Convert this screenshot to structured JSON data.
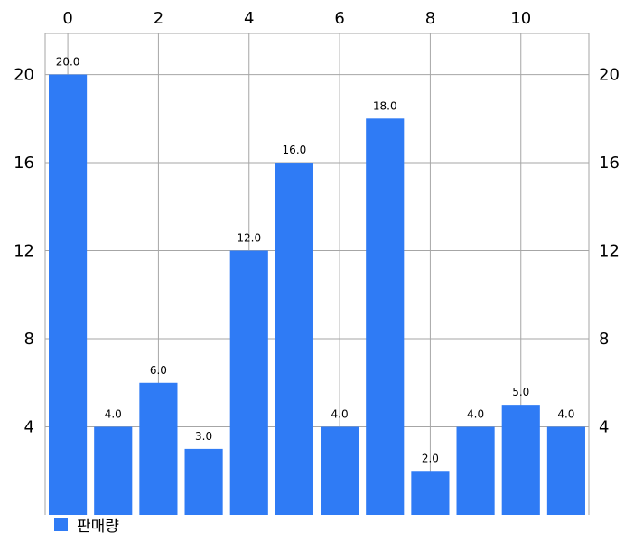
{
  "chart_data": {
    "type": "bar",
    "x": [
      0,
      1,
      2,
      3,
      4,
      5,
      6,
      7,
      8,
      9,
      10,
      11
    ],
    "series": [
      {
        "name": "판매량",
        "values": [
          20,
          4,
          6,
          3,
          12,
          16,
          4,
          18,
          2,
          4,
          5,
          4
        ],
        "labels": [
          "20.0",
          "4.0",
          "6.0",
          "3.0",
          "12.0",
          "16.0",
          "4.0",
          "18.0",
          "2.0",
          "4.0",
          "5.0",
          "4.0"
        ],
        "color": "#2f7bf5"
      }
    ],
    "x_ticks": [
      "0",
      "2",
      "4",
      "6",
      "8",
      "10"
    ],
    "x_tick_values": [
      0,
      2,
      4,
      6,
      8,
      10
    ],
    "x_axis_position": "top",
    "y_ticks_left": [
      "4",
      "8",
      "12",
      "16",
      "20"
    ],
    "y_ticks_right": [
      "4",
      "8",
      "12",
      "16",
      "20"
    ],
    "y_tick_values": [
      4,
      8,
      12,
      16,
      20
    ],
    "xlim": [
      -0.5,
      11.5
    ],
    "ylim": [
      0,
      21.87
    ],
    "grid": true,
    "grid_color": "#a6a6a6",
    "legend_position": "bottom-left"
  }
}
